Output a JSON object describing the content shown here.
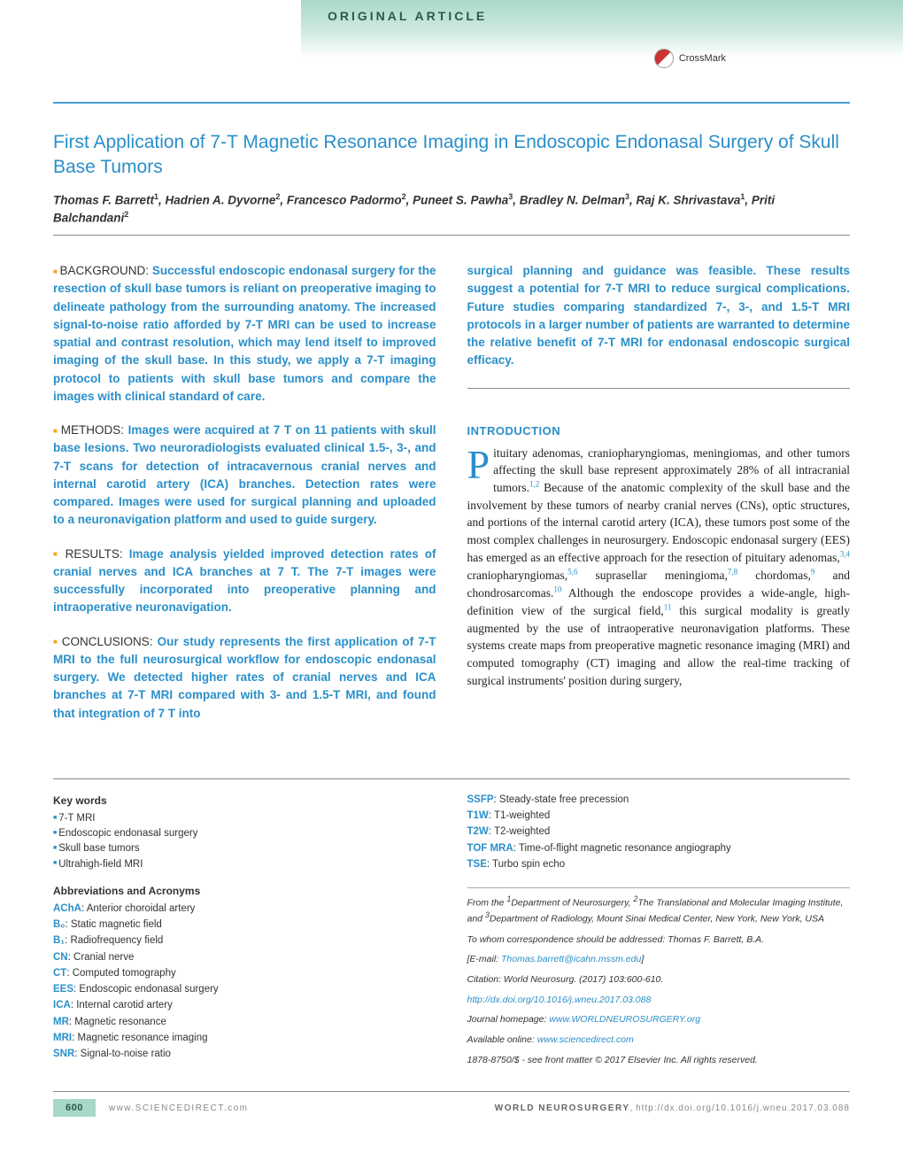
{
  "header": {
    "article_type": "Original Article",
    "crossmark": "CrossMark"
  },
  "title": "First Application of 7-T Magnetic Resonance Imaging in Endoscopic Endonasal Surgery of Skull Base Tumors",
  "authors_html": "Thomas F. Barrett<sup>1</sup>, Hadrien A. Dyvorne<sup>2</sup>, Francesco Padormo<sup>2</sup>, Puneet S. Pawha<sup>3</sup>, Bradley N. Delman<sup>3</sup>, Raj K. Shrivastava<sup>1</sup>, Priti Balchandani<sup>2</sup>",
  "abstract": {
    "background": "Successful endoscopic endonasal surgery for the resection of skull base tumors is reliant on preoperative imaging to delineate pathology from the surrounding anatomy. The increased signal-to-noise ratio afforded by 7-T MRI can be used to increase spatial and contrast resolution, which may lend itself to improved imaging of the skull base. In this study, we apply a 7-T imaging protocol to patients with skull base tumors and compare the images with clinical standard of care.",
    "methods": "Images were acquired at 7 T on 11 patients with skull base lesions. Two neuroradiologists evaluated clinical 1.5-, 3-, and 7-T scans for detection of intracavernous cranial nerves and internal carotid artery (ICA) branches. Detection rates were compared. Images were used for surgical planning and uploaded to a neuronavigation platform and used to guide surgery.",
    "results": "Image analysis yielded improved detection rates of cranial nerves and ICA branches at 7 T. The 7-T images were successfully incorporated into preoperative planning and intraoperative neuronavigation.",
    "conclusions_a": "Our study represents the first application of 7-T MRI to the full neurosurgical workflow for endoscopic endonasal surgery. We detected higher rates of cranial nerves and ICA branches at 7-T MRI compared with 3- and 1.5-T MRI, and found that integration of 7 T into",
    "conclusions_b": "surgical planning and guidance was feasible. These results suggest a potential for 7-T MRI to reduce surgical complications. Future studies comparing standardized 7-, 3-, and 1.5-T MRI protocols in a larger number of patients are warranted to determine the relative benefit of 7-T MRI for endonasal endoscopic surgical efficacy."
  },
  "intro_head": "INTRODUCTION",
  "intro_body": "ituitary adenomas, craniopharyngiomas, meningiomas, and other tumors affecting the skull base represent approximately 28% of all intracranial tumors.<sup class=\"ref\">1,2</sup> Because of the anatomic complexity of the skull base and the involvement by these tumors of nearby cranial nerves (CNs), optic structures, and portions of the internal carotid artery (ICA), these tumors post some of the most complex challenges in neurosurgery. Endoscopic endonasal surgery (EES) has emerged as an effective approach for the resection of pituitary adenomas,<sup class=\"ref\">3,4</sup> craniopharyngiomas,<sup class=\"ref\">5,6</sup> suprasellar meningioma,<sup class=\"ref\">7,8</sup> chordomas,<sup class=\"ref\">9</sup> and chondrosarcomas.<sup class=\"ref\">10</sup> Although the endoscope provides a wide-angle, high-definition view of the surgical field,<sup class=\"ref\">11</sup> this surgical modality is greatly augmented by the use of intraoperative neuronavigation platforms. These systems create maps from preoperative magnetic resonance imaging (MRI) and computed tomography (CT) imaging and allow the real-time tracking of surgical instruments' position during surgery,",
  "keywords_head": "Key words",
  "keywords": [
    "7-T MRI",
    "Endoscopic endonasal surgery",
    "Skull base tumors",
    "Ultrahigh-field MRI"
  ],
  "abbr_head": "Abbreviations and Acronyms",
  "abbreviations": [
    {
      "term": "AChA",
      "def": "Anterior choroidal artery"
    },
    {
      "term": "B₀",
      "def": "Static magnetic field"
    },
    {
      "term": "B₁",
      "def": "Radiofrequency field"
    },
    {
      "term": "CN",
      "def": "Cranial nerve"
    },
    {
      "term": "CT",
      "def": "Computed tomography"
    },
    {
      "term": "EES",
      "def": "Endoscopic endonasal surgery"
    },
    {
      "term": "ICA",
      "def": "Internal carotid artery"
    },
    {
      "term": "MR",
      "def": "Magnetic resonance"
    },
    {
      "term": "MRI",
      "def": "Magnetic resonance imaging"
    },
    {
      "term": "SNR",
      "def": "Signal-to-noise ratio"
    }
  ],
  "abbreviations2": [
    {
      "term": "SSFP",
      "def": "Steady-state free precession"
    },
    {
      "term": "T1W",
      "def": "T1-weighted"
    },
    {
      "term": "T2W",
      "def": "T2-weighted"
    },
    {
      "term": "TOF MRA",
      "def": "Time-of-flight magnetic resonance angiography"
    },
    {
      "term": "TSE",
      "def": "Turbo spin echo"
    }
  ],
  "affiliations": "From the <sup>1</sup>Department of Neurosurgery, <sup>2</sup>The Translational and Molecular Imaging Institute, and <sup>3</sup>Department of Radiology, Mount Sinai Medical Center, New York, New York, USA",
  "correspondence": "To whom correspondence should be addressed: Thomas F. Barrett, B.A.",
  "email_label": "[E-mail: ",
  "email": "Thomas.barrett@icahn.mssm.edu",
  "email_close": "]",
  "citation_label": "Citation: World Neurosurg. (2017) 103:600-610.",
  "doi": "http://dx.doi.org/10.1016/j.wneu.2017.03.088",
  "homepage_label": "Journal homepage: ",
  "homepage": "www.WORLDNEUROSURGERY.org",
  "available_label": "Available online: ",
  "available": "www.sciencedirect.com",
  "copyright": "1878-8750/$ - see front matter © 2017 Elsevier Inc. All rights reserved.",
  "page_number": "600",
  "footer_left": "www.SCIENCEDIRECT.com",
  "footer_right_strong": "WORLD NEUROSURGERY",
  "footer_right_link": "http://dx.doi.org/10.1016/j.wneu.2017.03.088"
}
